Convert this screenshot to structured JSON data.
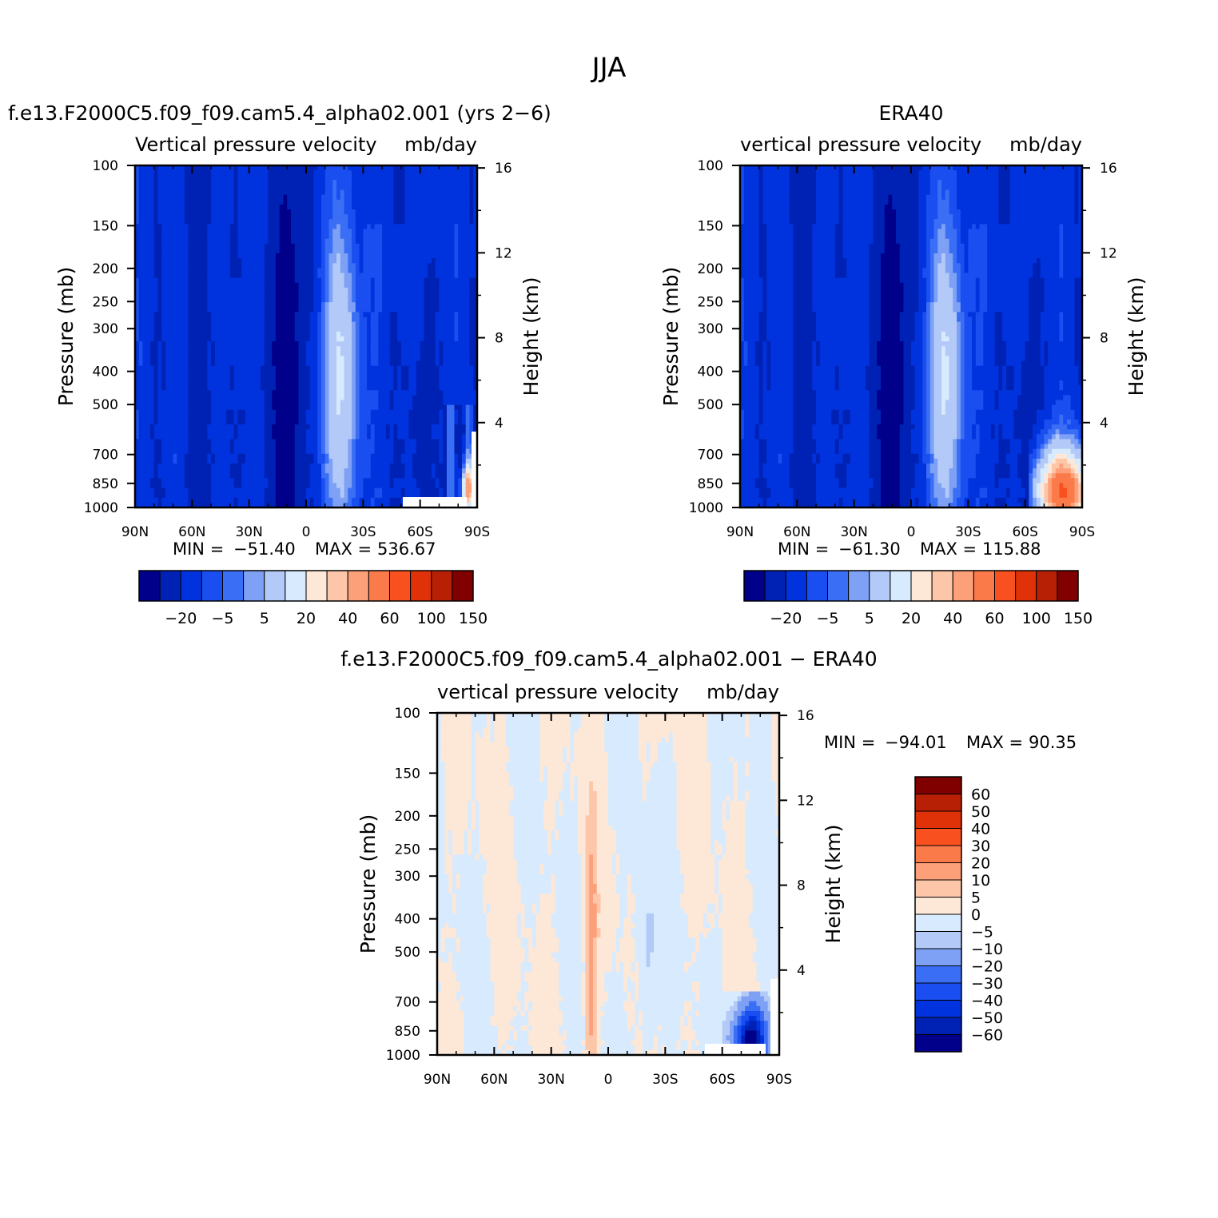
{
  "figure": {
    "title": "JJA"
  },
  "chart_data": [
    {
      "type": "heatmap",
      "title": "f.e13.F2000C5.f09_f09.cam5.4_alpha02.001 (yrs 2-6)",
      "subtitle": "Vertical pressure velocity",
      "units": "mb/day",
      "ylabel": "Pressure (mb)",
      "y2label": "Height (km)",
      "xticks": [
        "90N",
        "60N",
        "30N",
        "0",
        "30S",
        "60S",
        "90S"
      ],
      "yticks": [
        100,
        150,
        200,
        250,
        300,
        400,
        500,
        700,
        850,
        1000
      ],
      "y2ticks": [
        16,
        12,
        8,
        4
      ],
      "stats": {
        "min_label": "MIN =",
        "min": "-51.40",
        "max_label": "MAX =",
        "max": "536.67"
      },
      "colorbar": {
        "orientation": "horizontal",
        "colors": [
          "#00008b",
          "#0022b4",
          "#0033dd",
          "#1a4ef0",
          "#3a6ff5",
          "#7ea1f5",
          "#b3caf8",
          "#d8eafd",
          "#fde8d8",
          "#fdc6a8",
          "#fca07a",
          "#fb7a4a",
          "#f8501e",
          "#e03208",
          "#b82006",
          "#800000"
        ],
        "labels": [
          "-20",
          "-5",
          "5",
          "20",
          "40",
          "60",
          "100",
          "150"
        ]
      },
      "field": "model"
    },
    {
      "type": "heatmap",
      "title": "ERA40",
      "subtitle": "vertical pressure velocity",
      "units": "mb/day",
      "ylabel": "Pressure (mb)",
      "y2label": "Height (km)",
      "xticks": [
        "90N",
        "60N",
        "30N",
        "0",
        "30S",
        "60S",
        "90S"
      ],
      "yticks": [
        100,
        150,
        200,
        250,
        300,
        400,
        500,
        700,
        850,
        1000
      ],
      "y2ticks": [
        16,
        12,
        8,
        4
      ],
      "stats": {
        "min_label": "MIN =",
        "min": "-61.30",
        "max_label": "MAX =",
        "max": "115.88"
      },
      "colorbar": {
        "orientation": "horizontal",
        "colors": [
          "#00008b",
          "#0022b4",
          "#0033dd",
          "#1a4ef0",
          "#3a6ff5",
          "#7ea1f5",
          "#b3caf8",
          "#d8eafd",
          "#fde8d8",
          "#fdc6a8",
          "#fca07a",
          "#fb7a4a",
          "#f8501e",
          "#e03208",
          "#b82006",
          "#800000"
        ],
        "labels": [
          "-20",
          "-5",
          "5",
          "20",
          "40",
          "60",
          "100",
          "150"
        ]
      },
      "field": "obs"
    },
    {
      "type": "heatmap",
      "title": "f.e13.F2000C5.f09_f09.cam5.4_alpha02.001 - ERA40",
      "subtitle": "vertical pressure velocity",
      "units": "mb/day",
      "ylabel": "Pressure (mb)",
      "y2label": "Height (km)",
      "xticks": [
        "90N",
        "60N",
        "30N",
        "0",
        "30S",
        "60S",
        "90S"
      ],
      "yticks": [
        100,
        150,
        200,
        250,
        300,
        400,
        500,
        700,
        850,
        1000
      ],
      "y2ticks": [
        16,
        12,
        8,
        4
      ],
      "stats": {
        "min_label": "MIN =",
        "min": "-94.01",
        "max_label": "MAX =",
        "max": "90.35"
      },
      "colorbar": {
        "orientation": "vertical",
        "colors": [
          "#800000",
          "#b82006",
          "#e03208",
          "#f8501e",
          "#fb7a4a",
          "#fca07a",
          "#fdc6a8",
          "#fde8d8",
          "#d8eafd",
          "#b3caf8",
          "#7ea1f5",
          "#3a6ff5",
          "#1a4ef0",
          "#0033dd",
          "#0022b4",
          "#00008b"
        ],
        "labels": [
          "60",
          "50",
          "40",
          "30",
          "20",
          "10",
          "5",
          "0",
          "-5",
          "-10",
          "-20",
          "-30",
          "-40",
          "-50",
          "-60"
        ]
      },
      "field": "diff"
    }
  ]
}
